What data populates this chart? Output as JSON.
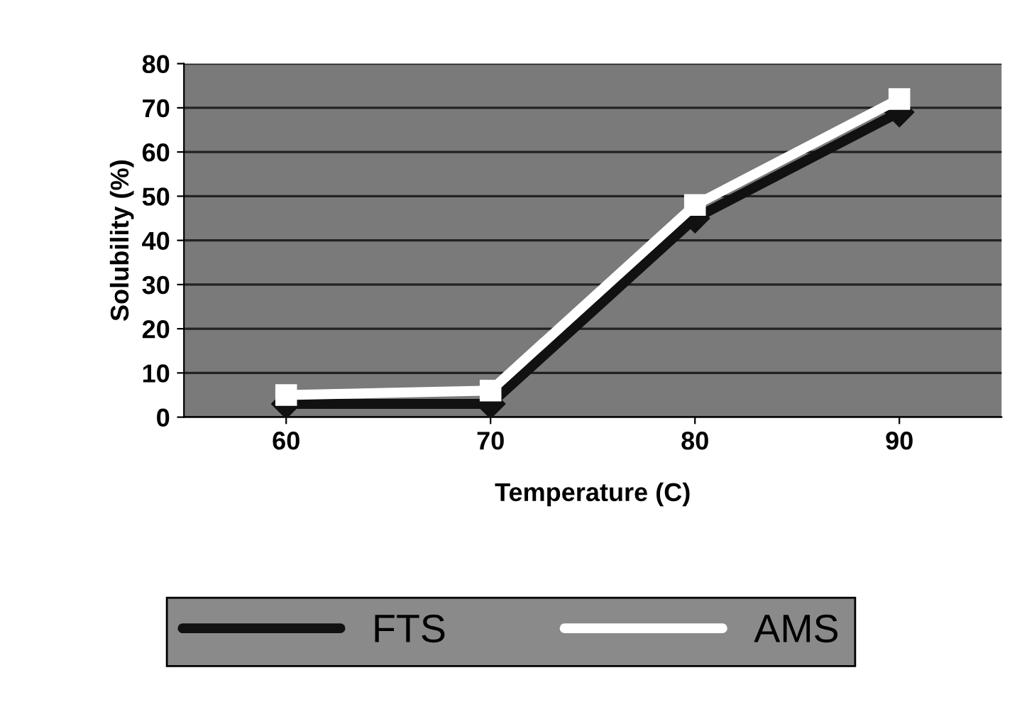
{
  "chart_data": {
    "type": "line",
    "xlabel": "Temperature (C)",
    "ylabel": "Solubility (%)",
    "categories": [
      "60",
      "70",
      "80",
      "90"
    ],
    "series": [
      {
        "name": "FTS",
        "color": "#111111",
        "values": [
          3,
          3,
          45,
          69
        ],
        "marker": "diamond"
      },
      {
        "name": "AMS",
        "color": "#ffffff",
        "values": [
          5,
          6,
          48,
          72
        ],
        "marker": "square"
      }
    ],
    "ylim": [
      0,
      80
    ],
    "yticks": [
      0,
      10,
      20,
      30,
      40,
      50,
      60,
      70,
      80
    ],
    "grid": "y",
    "legend": "bottom"
  }
}
